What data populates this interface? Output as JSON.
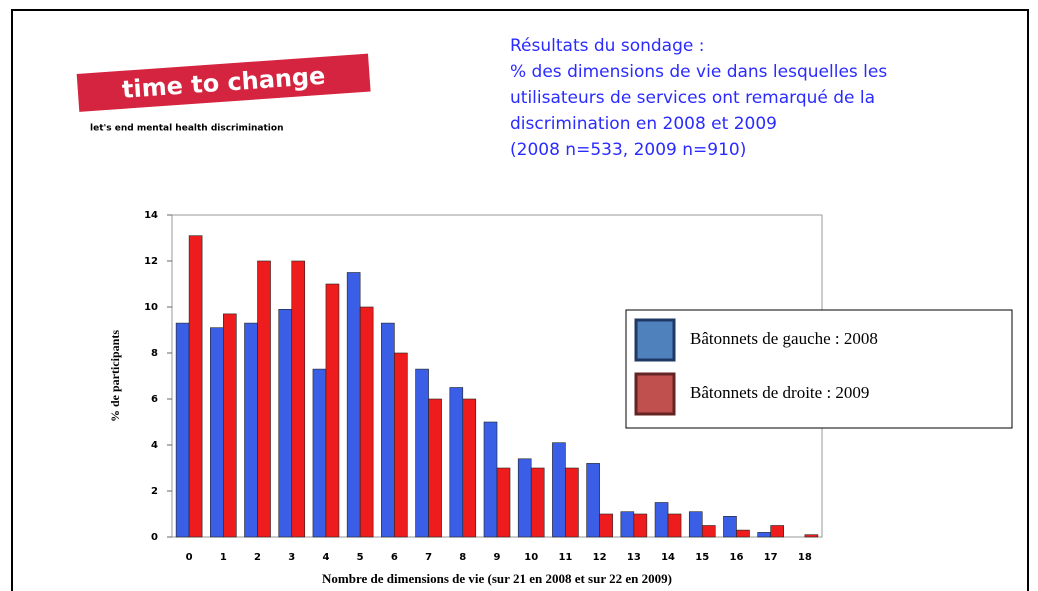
{
  "logo": {
    "name": "time to change",
    "tagline": "let's end mental health discrimination"
  },
  "chart_data": {
    "type": "bar",
    "title": [
      "Résultats du sondage :",
      "% des dimensions de vie dans lesquelles les",
      "utilisateurs de services ont remarqué de la",
      "discrimination en 2008 et 2009",
      "(2008 n=533, 2009 n=910)"
    ],
    "x_label": "Nombre de dimensions de vie (sur 21 en 2008 et sur 22 en 2009)",
    "y_label": "% de participants",
    "categories": [
      "0",
      "1",
      "2",
      "3",
      "4",
      "5",
      "6",
      "7",
      "8",
      "9",
      "10",
      "11",
      "12",
      "13",
      "14",
      "15",
      "16",
      "17",
      "18"
    ],
    "series": [
      {
        "name": "Bâtonnets de gauche : 2008",
        "color": "#3a5ee6",
        "legend_color": "#4f81bd",
        "values": [
          9.3,
          9.1,
          9.3,
          9.9,
          7.3,
          11.5,
          9.3,
          7.3,
          6.5,
          5.0,
          3.4,
          4.1,
          3.2,
          1.1,
          1.5,
          1.1,
          0.9,
          0.2,
          0
        ]
      },
      {
        "name": "Bâtonnets de droite : 2009",
        "color": "#ee1c1c",
        "legend_color": "#c0504d",
        "values": [
          13.1,
          9.7,
          12,
          12,
          11,
          10,
          8,
          6,
          6,
          3,
          3,
          3,
          1,
          1,
          1,
          0.5,
          0.3,
          0.5,
          0.1
        ]
      }
    ],
    "ylim": [
      0,
      14
    ],
    "yticks": [
      0,
      2,
      4,
      6,
      8,
      10,
      12,
      14
    ],
    "grid": false
  }
}
